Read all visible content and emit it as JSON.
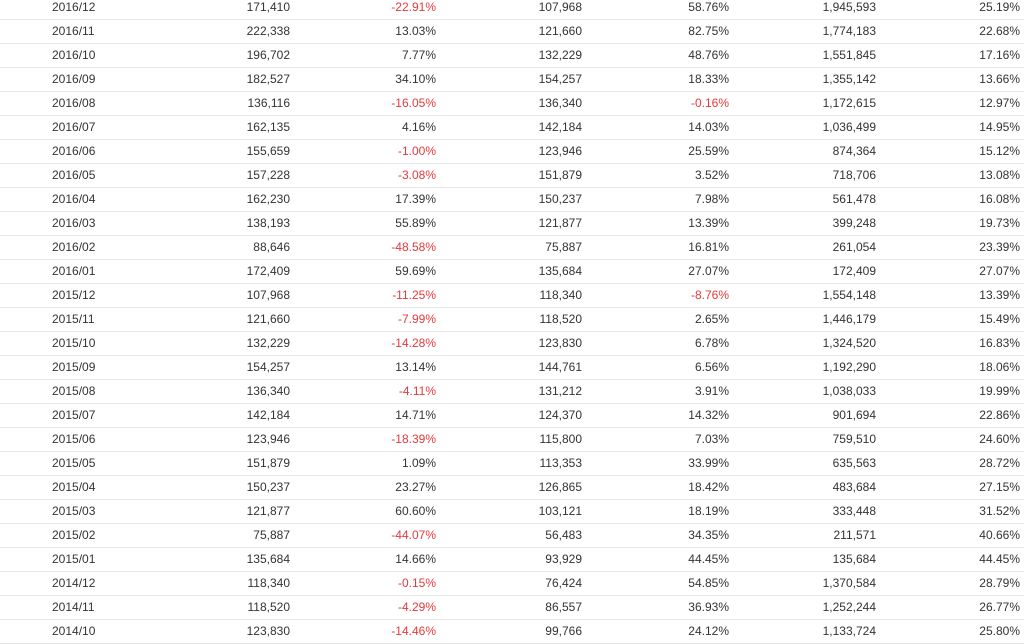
{
  "table": {
    "rows": [
      [
        "2016/12",
        "171,410",
        "-22.91%",
        "107,968",
        "58.76%",
        "1,945,593",
        "25.19%"
      ],
      [
        "2016/11",
        "222,338",
        "13.03%",
        "121,660",
        "82.75%",
        "1,774,183",
        "22.68%"
      ],
      [
        "2016/10",
        "196,702",
        "7.77%",
        "132,229",
        "48.76%",
        "1,551,845",
        "17.16%"
      ],
      [
        "2016/09",
        "182,527",
        "34.10%",
        "154,257",
        "18.33%",
        "1,355,142",
        "13.66%"
      ],
      [
        "2016/08",
        "136,116",
        "-16.05%",
        "136,340",
        "-0.16%",
        "1,172,615",
        "12.97%"
      ],
      [
        "2016/07",
        "162,135",
        "4.16%",
        "142,184",
        "14.03%",
        "1,036,499",
        "14.95%"
      ],
      [
        "2016/06",
        "155,659",
        "-1.00%",
        "123,946",
        "25.59%",
        "874,364",
        "15.12%"
      ],
      [
        "2016/05",
        "157,228",
        "-3.08%",
        "151,879",
        "3.52%",
        "718,706",
        "13.08%"
      ],
      [
        "2016/04",
        "162,230",
        "17.39%",
        "150,237",
        "7.98%",
        "561,478",
        "16.08%"
      ],
      [
        "2016/03",
        "138,193",
        "55.89%",
        "121,877",
        "13.39%",
        "399,248",
        "19.73%"
      ],
      [
        "2016/02",
        "88,646",
        "-48.58%",
        "75,887",
        "16.81%",
        "261,054",
        "23.39%"
      ],
      [
        "2016/01",
        "172,409",
        "59.69%",
        "135,684",
        "27.07%",
        "172,409",
        "27.07%"
      ],
      [
        "2015/12",
        "107,968",
        "-11.25%",
        "118,340",
        "-8.76%",
        "1,554,148",
        "13.39%"
      ],
      [
        "2015/11",
        "121,660",
        "-7.99%",
        "118,520",
        "2.65%",
        "1,446,179",
        "15.49%"
      ],
      [
        "2015/10",
        "132,229",
        "-14.28%",
        "123,830",
        "6.78%",
        "1,324,520",
        "16.83%"
      ],
      [
        "2015/09",
        "154,257",
        "13.14%",
        "144,761",
        "6.56%",
        "1,192,290",
        "18.06%"
      ],
      [
        "2015/08",
        "136,340",
        "-4.11%",
        "131,212",
        "3.91%",
        "1,038,033",
        "19.99%"
      ],
      [
        "2015/07",
        "142,184",
        "14.71%",
        "124,370",
        "14.32%",
        "901,694",
        "22.86%"
      ],
      [
        "2015/06",
        "123,946",
        "-18.39%",
        "115,800",
        "7.03%",
        "759,510",
        "24.60%"
      ],
      [
        "2015/05",
        "151,879",
        "1.09%",
        "113,353",
        "33.99%",
        "635,563",
        "28.72%"
      ],
      [
        "2015/04",
        "150,237",
        "23.27%",
        "126,865",
        "18.42%",
        "483,684",
        "27.15%"
      ],
      [
        "2015/03",
        "121,877",
        "60.60%",
        "103,121",
        "18.19%",
        "333,448",
        "31.52%"
      ],
      [
        "2015/02",
        "75,887",
        "-44.07%",
        "56,483",
        "34.35%",
        "211,571",
        "40.66%"
      ],
      [
        "2015/01",
        "135,684",
        "14.66%",
        "93,929",
        "44.45%",
        "135,684",
        "44.45%"
      ],
      [
        "2014/12",
        "118,340",
        "-0.15%",
        "76,424",
        "54.85%",
        "1,370,584",
        "28.79%"
      ],
      [
        "2014/11",
        "118,520",
        "-4.29%",
        "86,557",
        "36.93%",
        "1,252,244",
        "26.77%"
      ],
      [
        "2014/10",
        "123,830",
        "-14.46%",
        "99,766",
        "24.12%",
        "1,133,724",
        "25.80%"
      ]
    ],
    "colors": {
      "text": "#333333",
      "negative": "#e4393c",
      "row_border": "#e6e6e6"
    }
  }
}
